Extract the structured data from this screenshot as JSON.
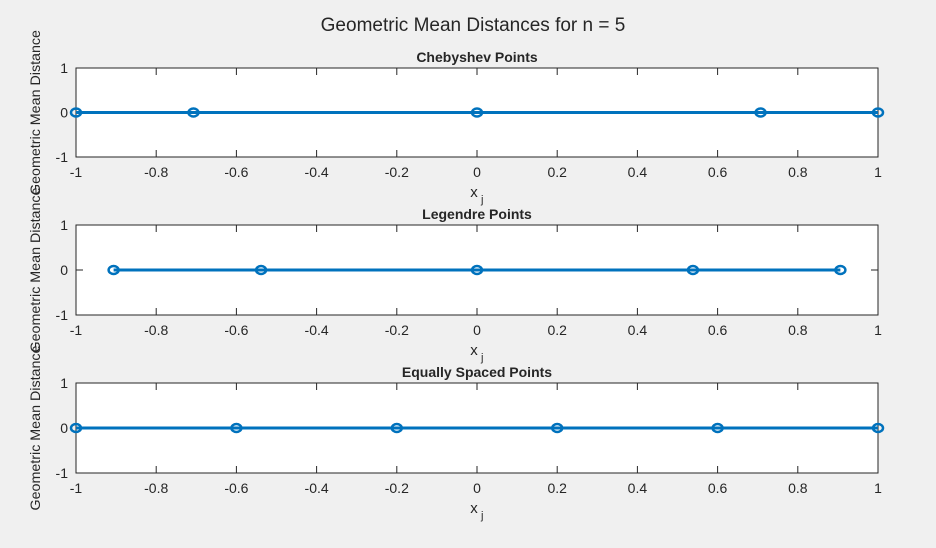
{
  "figure": {
    "suptitle": "Geometric Mean Distances for n = 5",
    "line_color": "#0072bd",
    "axes_bg": "#ffffff",
    "figure_bg": "#f0f0f0"
  },
  "chart_data": [
    {
      "type": "line",
      "title": "Chebyshev Points",
      "xlabel": "x",
      "xlabel_subscript": "j",
      "ylabel": "Geometric Mean Distance",
      "xlim": [
        -1,
        1
      ],
      "ylim": [
        -1,
        1
      ],
      "xticks": [
        -1,
        -0.8,
        -0.6,
        -0.4,
        -0.2,
        0,
        0.2,
        0.4,
        0.6,
        0.8,
        1
      ],
      "xtick_labels": [
        "-1",
        "-0.8",
        "-0.6",
        "-0.4",
        "-0.2",
        "0",
        "0.2",
        "0.4",
        "0.6",
        "0.8",
        "1"
      ],
      "yticks": [
        -1,
        0,
        1
      ],
      "ytick_labels": [
        "-1",
        "0",
        "1"
      ],
      "marker": "o",
      "x": [
        -1,
        -0.7071,
        0,
        0.7071,
        1
      ],
      "y": [
        0,
        0,
        0,
        0,
        0
      ]
    },
    {
      "type": "line",
      "title": "Legendre Points",
      "xlabel": "x",
      "xlabel_subscript": "j",
      "ylabel": "Geometric Mean Distance",
      "xlim": [
        -1,
        1
      ],
      "ylim": [
        -1,
        1
      ],
      "xticks": [
        -1,
        -0.8,
        -0.6,
        -0.4,
        -0.2,
        0,
        0.2,
        0.4,
        0.6,
        0.8,
        1
      ],
      "xtick_labels": [
        "-1",
        "-0.8",
        "-0.6",
        "-0.4",
        "-0.2",
        "0",
        "0.2",
        "0.4",
        "0.6",
        "0.8",
        "1"
      ],
      "yticks": [
        -1,
        0,
        1
      ],
      "ytick_labels": [
        "-1",
        "0",
        "1"
      ],
      "marker": "o",
      "x": [
        -0.9062,
        -0.5385,
        0,
        0.5385,
        0.9062
      ],
      "y": [
        0,
        0,
        0,
        0,
        0
      ]
    },
    {
      "type": "line",
      "title": "Equally Spaced Points",
      "xlabel": "x",
      "xlabel_subscript": "j",
      "ylabel": "Geometric Mean Distance",
      "xlim": [
        -1,
        1
      ],
      "ylim": [
        -1,
        1
      ],
      "xticks": [
        -1,
        -0.8,
        -0.6,
        -0.4,
        -0.2,
        0,
        0.2,
        0.4,
        0.6,
        0.8,
        1
      ],
      "xtick_labels": [
        "-1",
        "-0.8",
        "-0.6",
        "-0.4",
        "-0.2",
        "0",
        "0.2",
        "0.4",
        "0.6",
        "0.8",
        "1"
      ],
      "yticks": [
        -1,
        0,
        1
      ],
      "ytick_labels": [
        "-1",
        "0",
        "1"
      ],
      "marker": "o",
      "x": [
        -1,
        -0.6,
        -0.2,
        0.2,
        0.6,
        1
      ],
      "y": [
        0,
        0,
        0,
        0,
        0,
        0
      ]
    }
  ]
}
